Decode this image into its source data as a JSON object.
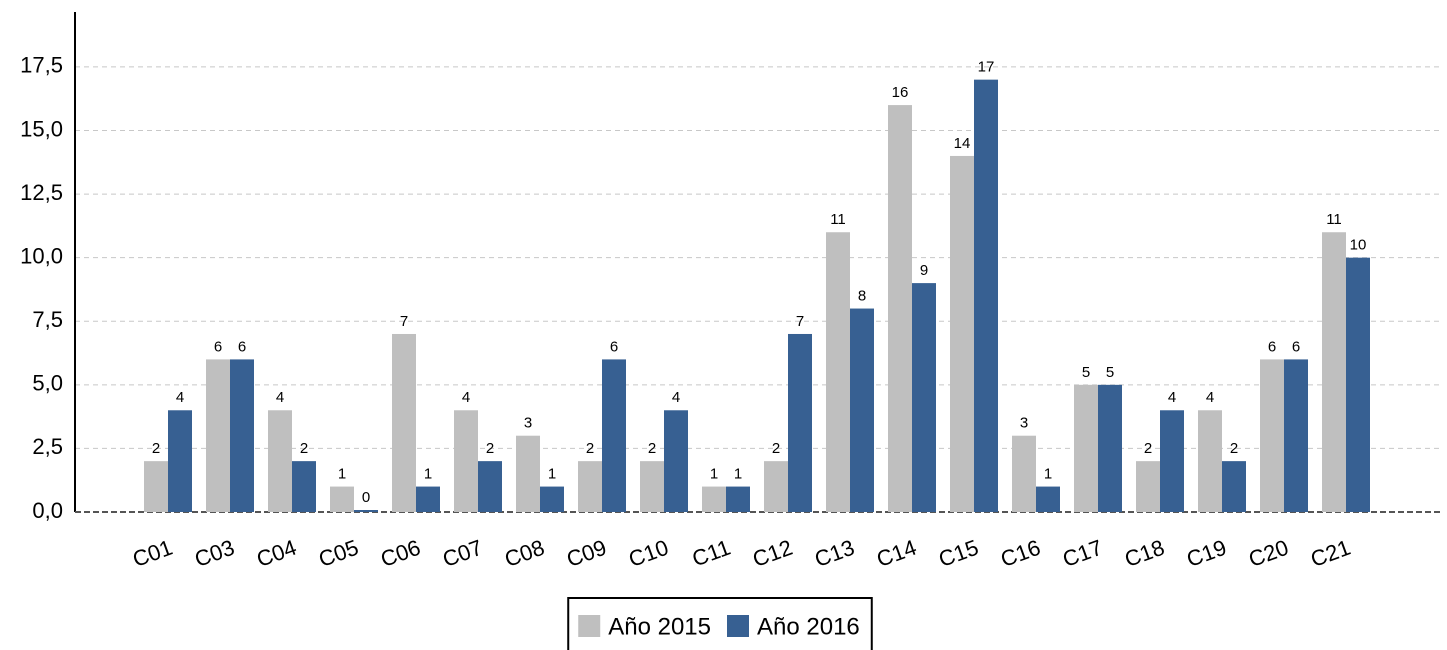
{
  "chart_data": {
    "type": "bar",
    "categories": [
      "C01",
      "C03",
      "C04",
      "C05",
      "C06",
      "C07",
      "C08",
      "C09",
      "C10",
      "C11",
      "C12",
      "C13",
      "C14",
      "C15",
      "C16",
      "C17",
      "C18",
      "C19",
      "C20",
      "C21"
    ],
    "series": [
      {
        "name": "Año 2015",
        "color": "#bfbfbf",
        "values": [
          2,
          6,
          4,
          1,
          7,
          4,
          3,
          2,
          2,
          1,
          2,
          11,
          16,
          14,
          3,
          5,
          2,
          4,
          6,
          11
        ]
      },
      {
        "name": "Año 2016",
        "color": "#376092",
        "values": [
          4,
          6,
          2,
          0,
          1,
          2,
          1,
          6,
          4,
          1,
          7,
          8,
          9,
          17,
          1,
          5,
          4,
          2,
          6,
          10
        ]
      }
    ],
    "ylim": [
      0,
      19.66
    ],
    "yticks": [
      {
        "value": 0,
        "label": "0,0"
      },
      {
        "value": 2.5,
        "label": "2,5"
      },
      {
        "value": 5,
        "label": "5,0"
      },
      {
        "value": 7.5,
        "label": "7,5"
      },
      {
        "value": 10,
        "label": "10,0"
      },
      {
        "value": 12.5,
        "label": "12,5"
      },
      {
        "value": 15,
        "label": "15,0"
      },
      {
        "value": 17.5,
        "label": "17,5"
      }
    ],
    "grid": true,
    "legend": "bottom"
  }
}
